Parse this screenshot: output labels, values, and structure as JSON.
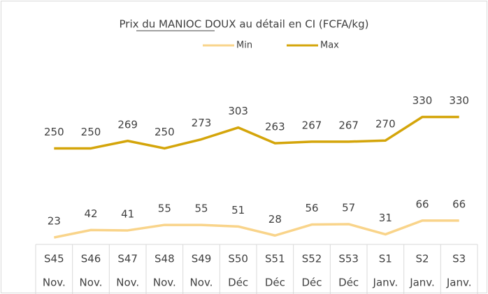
{
  "chart_data": {
    "type": "line",
    "title": "Prix du MANIOC DOUX  au détail en CI (FCFA/kg)",
    "categories": [
      [
        "S45",
        "Nov."
      ],
      [
        "S46",
        "Nov."
      ],
      [
        "S47",
        "Nov."
      ],
      [
        "S48",
        "Nov."
      ],
      [
        "S49",
        "Nov."
      ],
      [
        "S50",
        "Déc"
      ],
      [
        "S51",
        "Déc"
      ],
      [
        "S52",
        "Déc"
      ],
      [
        "S53",
        "Déc"
      ],
      [
        "S1",
        "Janv."
      ],
      [
        "S2",
        "Janv."
      ],
      [
        "S3",
        "Janv."
      ]
    ],
    "series": [
      {
        "name": "Min",
        "color": "#f9d48a",
        "values": [
          23,
          42,
          41,
          55,
          55,
          51,
          28,
          56,
          57,
          31,
          66,
          66
        ]
      },
      {
        "name": "Max",
        "color": "#d4a50a",
        "values": [
          250,
          250,
          269,
          250,
          273,
          303,
          263,
          267,
          267,
          270,
          330,
          330
        ]
      }
    ],
    "ylim": [
      0,
      450
    ],
    "legend": "top"
  }
}
